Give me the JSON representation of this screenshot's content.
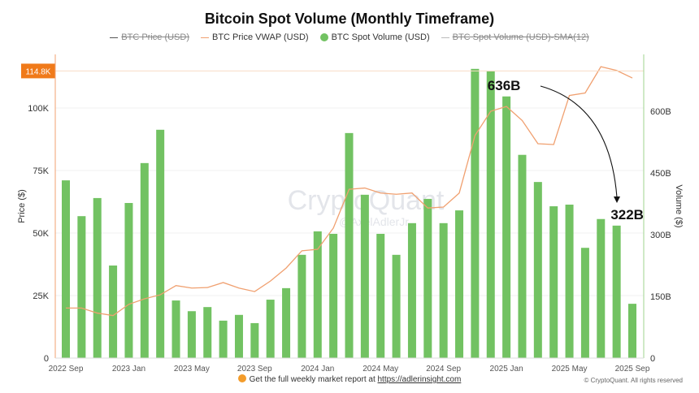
{
  "chart_data": {
    "type": "bar",
    "title": "Bitcoin Spot Volume (Monthly Timeframe)",
    "legend": [
      {
        "label": "BTC Price (USD)",
        "color": "#555555",
        "hidden": true
      },
      {
        "label": "BTC Price VWAP (USD)",
        "color": "#f0a070",
        "hidden": false
      },
      {
        "label": "BTC Spot Volume (USD)",
        "color": "#72c262",
        "hidden": false
      },
      {
        "label": "BTC Spot Volume (USD)-SMA(12)",
        "color": "#aaaaaa",
        "hidden": true
      }
    ],
    "legend_position": "top",
    "categories": [
      "2022 Sep",
      "2022 Oct",
      "2022 Nov",
      "2022 Dec",
      "2023 Jan",
      "2023 Feb",
      "2023 Mar",
      "2023 Apr",
      "2023 May",
      "2023 Jun",
      "2023 Jul",
      "2023 Aug",
      "2023 Sep",
      "2023 Oct",
      "2023 Nov",
      "2023 Dec",
      "2024 Jan",
      "2024 Feb",
      "2024 Mar",
      "2024 Apr",
      "2024 May",
      "2024 Jun",
      "2024 Jul",
      "2024 Aug",
      "2024 Sep",
      "2024 Oct",
      "2024 Nov",
      "2024 Dec",
      "2025 Jan",
      "2025 Feb",
      "2025 Mar",
      "2025 Apr",
      "2025 May",
      "2025 Jun",
      "2025 Jul",
      "2025 Aug",
      "2025 Sep"
    ],
    "x_tick_labels": [
      "2022 Sep",
      "2023 Jan",
      "2023 May",
      "2023 Sep",
      "2024 Jan",
      "2024 May",
      "2024 Sep",
      "2025 Jan",
      "2025 May",
      "2025 Sep"
    ],
    "series": [
      {
        "name": "BTC Spot Volume (USD)",
        "axis": "right",
        "type": "bar",
        "unit": "B",
        "values": [
          432,
          345,
          389,
          225,
          377,
          474,
          555,
          140,
          114,
          124,
          91,
          105,
          85,
          142,
          170,
          251,
          308,
          302,
          547,
          397,
          302,
          251,
          328,
          387,
          328,
          359,
          703,
          697,
          636,
          494,
          428,
          369,
          373,
          268,
          338,
          322,
          132
        ]
      },
      {
        "name": "BTC Price VWAP (USD)",
        "axis": "left",
        "type": "line",
        "unit": "K",
        "values": [
          20,
          20,
          18,
          17,
          21.5,
          23.7,
          25.3,
          29,
          28,
          28.2,
          30.2,
          28,
          26.6,
          30.8,
          36,
          42.9,
          43.5,
          52,
          67.5,
          68,
          66,
          65.5,
          66,
          60,
          60.4,
          66,
          89,
          98.7,
          100.6,
          95,
          85.7,
          85.4,
          105,
          106,
          116.5,
          115,
          112
        ]
      }
    ],
    "ylabel_left": "Price ($)",
    "ylabel_right": "Volume ($)",
    "ylim_left": [
      0,
      120
    ],
    "yticks_left": [
      "0",
      "25K",
      "50K",
      "75K",
      "100K"
    ],
    "ylim_right": [
      0,
      720
    ],
    "yticks_right": [
      "0",
      "150B",
      "300B",
      "450B",
      "600B"
    ],
    "price_marker": {
      "label": "114.8K",
      "value": 114.8,
      "color": "#f07a1a"
    },
    "annotations": [
      {
        "label": "636B",
        "category": "2025 Jan"
      },
      {
        "label": "322B",
        "category": "2025 Aug"
      }
    ],
    "grid": true,
    "watermark": "CryptoQuant @AxelAdlerJr"
  },
  "footer": {
    "text": "Get the full weekly market report at ",
    "link": "https://adlerinsight.com",
    "copyright": "© CryptoQuant. All rights reserved"
  }
}
